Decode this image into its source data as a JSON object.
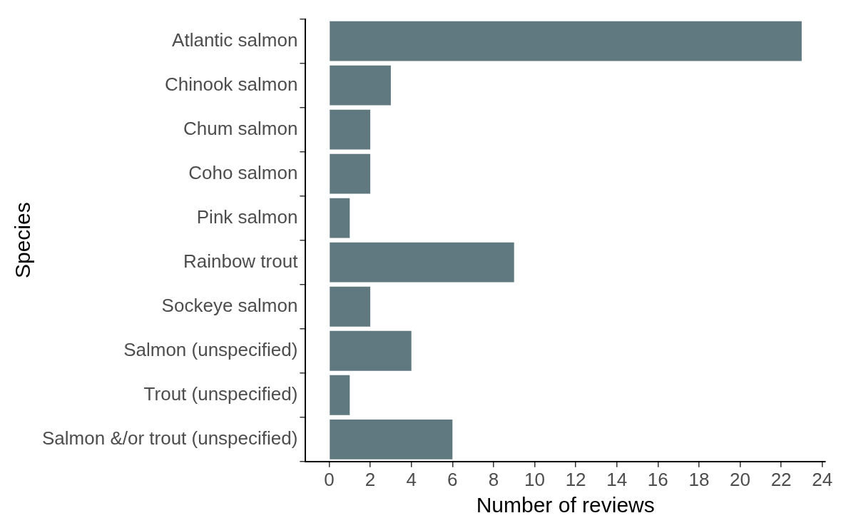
{
  "chart_data": {
    "type": "bar",
    "orientation": "horizontal",
    "xlabel": "Number of reviews",
    "ylabel": "Species",
    "categories": [
      "Atlantic salmon",
      "Chinook salmon",
      "Chum salmon",
      "Coho salmon",
      "Pink salmon",
      "Rainbow trout",
      "Sockeye salmon",
      "Salmon (unspecified)",
      "Trout (unspecified)",
      "Salmon &/or trout (unspecified)"
    ],
    "values": [
      23,
      3,
      2,
      2,
      1,
      9,
      2,
      4,
      1,
      6
    ],
    "color": "#607880",
    "xlim": [
      -1.15,
      24.15
    ],
    "xticks": [
      0,
      2,
      4,
      6,
      8,
      10,
      12,
      14,
      16,
      18,
      20,
      22,
      24
    ],
    "grid": false,
    "legend": false
  }
}
